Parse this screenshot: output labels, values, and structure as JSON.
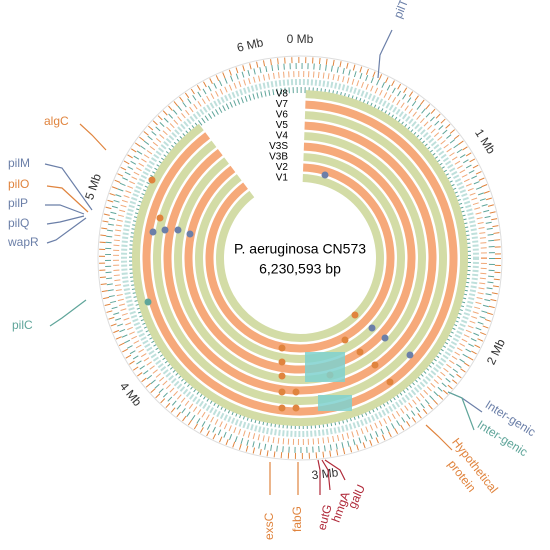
{
  "title": "P. aeruginosa CN573",
  "subtitle": "6,230,593 bp",
  "rings": [
    "V1",
    "V2",
    "V3B",
    "V3S",
    "V4",
    "V5",
    "V6",
    "V7",
    "V8"
  ],
  "scale_labels": [
    "0 Mb",
    "1 Mb",
    "2 Mb",
    "3 Mb",
    "4 Mb",
    "5 Mb",
    "6 Mb"
  ],
  "genes": [
    "pilT",
    "algC",
    "pilM",
    "pilO",
    "pilP",
    "pilQ",
    "wapR",
    "pilC",
    "Inter-genic",
    "Inter-genic",
    "Hypothetical",
    "protein",
    "exsC",
    "fabG",
    "eutG",
    "hmgA",
    "galU"
  ]
}
